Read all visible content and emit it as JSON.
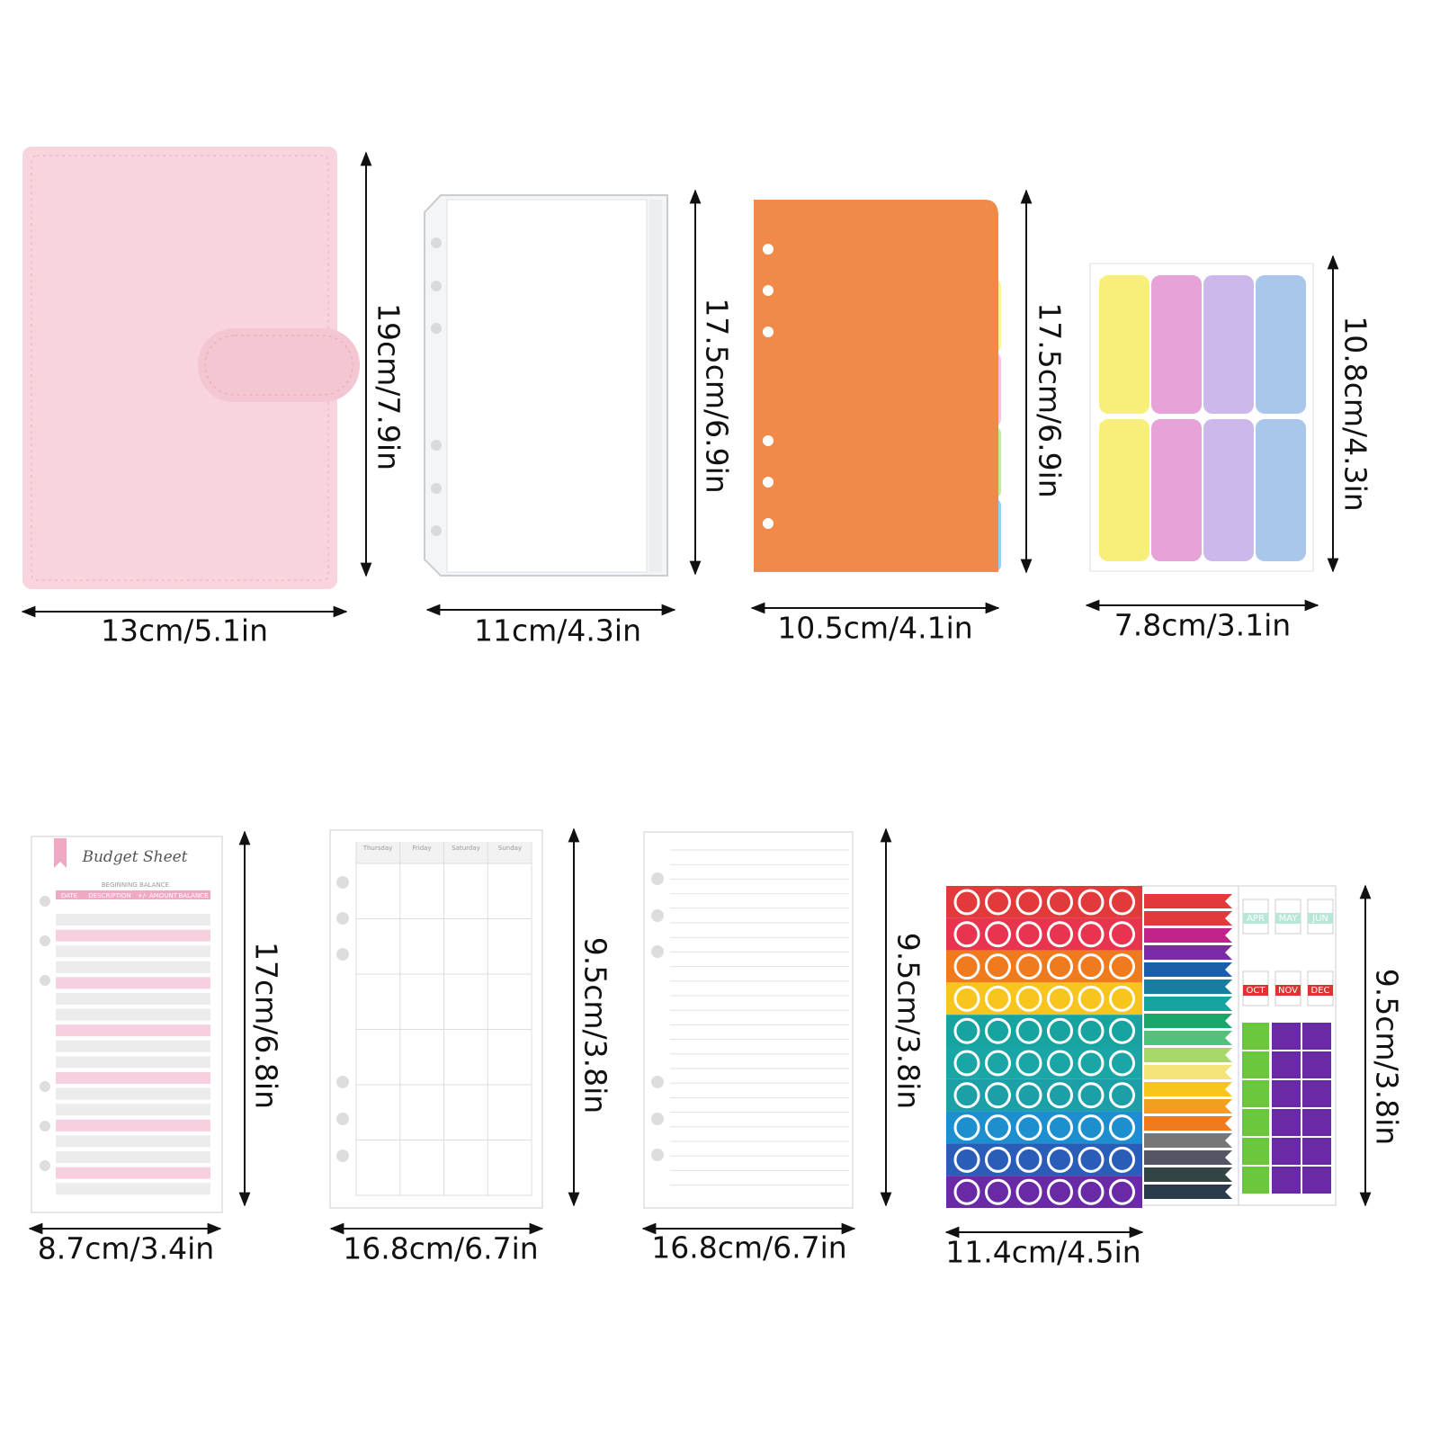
{
  "items": [
    {
      "width": "13cm/5.1in",
      "height": "19cm/7.9in"
    },
    {
      "width": "11cm/4.3in",
      "height": "17.5cm/6.9in"
    },
    {
      "width": "10.5cm/4.1in",
      "height": "17.5cm/6.9in"
    },
    {
      "width": "7.8cm/3.1in",
      "height": "10.8cm/4.3in"
    },
    {
      "width": "8.7cm/3.4in",
      "height": "17cm/6.8in"
    },
    {
      "width": "16.8cm/6.7in",
      "height": "9.5cm/3.8in"
    },
    {
      "width": "16.8cm/6.7in",
      "height": "9.5cm/3.8in"
    },
    {
      "width": "11.4cm/4.5in",
      "height": "9.5cm/3.8in"
    }
  ],
  "budget_sheet": {
    "title": "Budget Sheet",
    "beginning": "BEGINNING BALANCE",
    "columns": [
      "DATE",
      "DESCRIPTION",
      "+/- AMOUNT",
      "BALANCE"
    ]
  },
  "calendar_days": [
    "Thursday",
    "Friday",
    "Saturday",
    "Sunday"
  ],
  "month_stickers": [
    "APR",
    "MAY",
    "JUN",
    "OCT",
    "NOV",
    "DEC"
  ]
}
